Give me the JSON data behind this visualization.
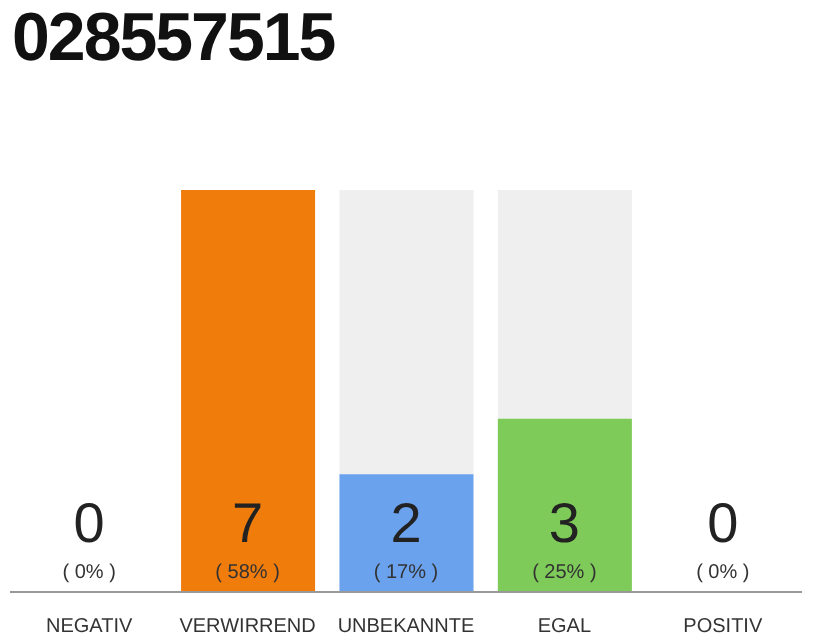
{
  "chart_data": {
    "type": "bar",
    "title": "028557515",
    "categories": [
      "NEGATIV",
      "VERWIRREND",
      "UNBEKANNTE",
      "EGAL",
      "POSITIV"
    ],
    "values": [
      0,
      58,
      17,
      25,
      0
    ],
    "colors": [
      "#e05050",
      "#f07c0c",
      "#6aa2ee",
      "#7ecb5a",
      "#50a050"
    ],
    "value_labels": [
      "( 0% )",
      "( 58% )",
      "( 17% )",
      "( 25% )",
      "( 0% )"
    ],
    "annotations": [
      "0",
      "7",
      "2",
      "3",
      "0"
    ],
    "tick_labels": "x",
    "legend": false
  }
}
